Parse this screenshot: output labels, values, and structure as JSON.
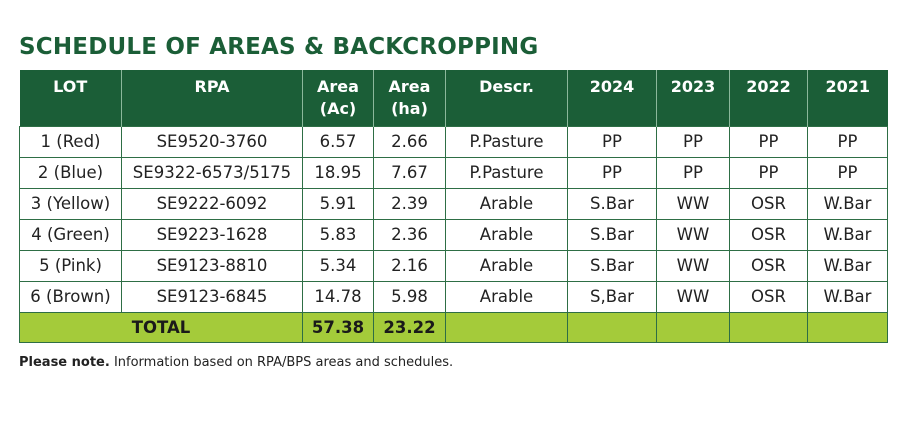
{
  "title": "SCHEDULE OF AREAS & BACKCROPPING",
  "table": {
    "headers": [
      {
        "line1": "LOT",
        "line2": ""
      },
      {
        "line1": "RPA",
        "line2": ""
      },
      {
        "line1": "Area",
        "line2": "(Ac)"
      },
      {
        "line1": "Area",
        "line2": "(ha)"
      },
      {
        "line1": "Descr.",
        "line2": ""
      },
      {
        "line1": "2024",
        "line2": ""
      },
      {
        "line1": "2023",
        "line2": ""
      },
      {
        "line1": "2022",
        "line2": ""
      },
      {
        "line1": "2021",
        "line2": ""
      }
    ],
    "rows": [
      [
        "1 (Red)",
        "SE9520-3760",
        "6.57",
        "2.66",
        "P.Pasture",
        "PP",
        "PP",
        "PP",
        "PP"
      ],
      [
        "2 (Blue)",
        "SE9322-6573/5175",
        "18.95",
        "7.67",
        "P.Pasture",
        "PP",
        "PP",
        "PP",
        "PP"
      ],
      [
        "3 (Yellow)",
        "SE9222-6092",
        "5.91",
        "2.39",
        "Arable",
        "S.Bar",
        "WW",
        "OSR",
        "W.Bar"
      ],
      [
        "4 (Green)",
        "SE9223-1628",
        "5.83",
        "2.36",
        "Arable",
        "S.Bar",
        "WW",
        "OSR",
        "W.Bar"
      ],
      [
        "5 (Pink)",
        "SE9123-8810",
        "5.34",
        "2.16",
        "Arable",
        "S.Bar",
        "WW",
        "OSR",
        "W.Bar"
      ],
      [
        "6 (Brown)",
        "SE9123-6845",
        "14.78",
        "5.98",
        "Arable",
        "S,Bar",
        "WW",
        "OSR",
        "W.Bar"
      ]
    ],
    "total": {
      "label": "TOTAL",
      "area_ac": "57.38",
      "area_ha": "23.22"
    }
  },
  "note": {
    "bold": "Please note.",
    "text": " Information based on RPA/BPS areas and schedules."
  },
  "colors": {
    "header_green": "#1b5e37",
    "total_lime": "#a4cb3a"
  }
}
